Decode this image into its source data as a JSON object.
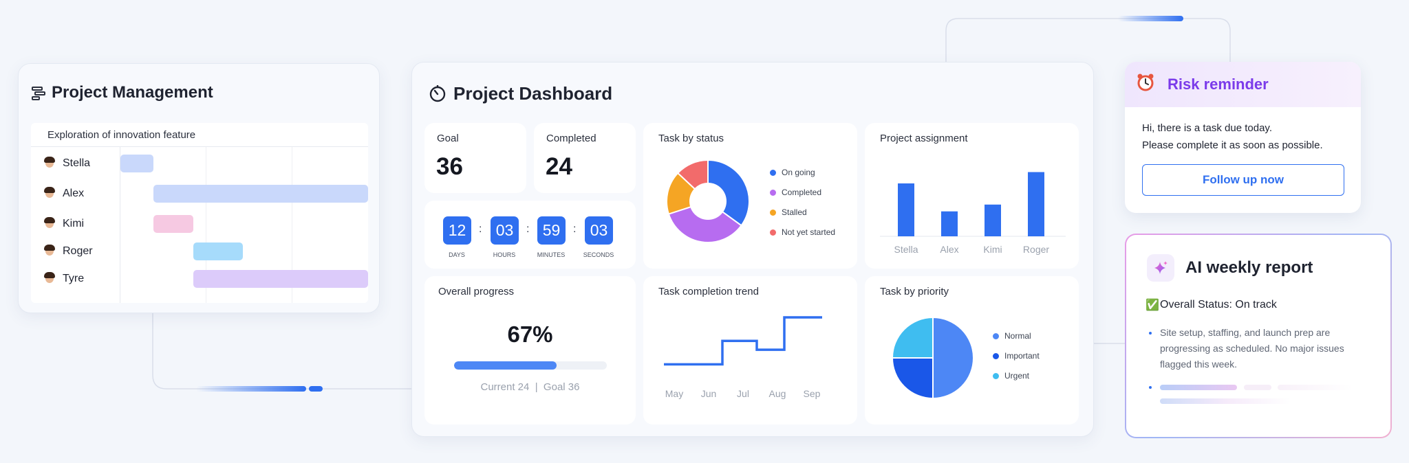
{
  "colors": {
    "primary": "#2f6ff0",
    "purple": "#7b3bea",
    "bg": "#f3f6fb"
  },
  "project_management": {
    "title": "Project Management",
    "icon": "gantt-icon",
    "task_title": "Exploration of innovation feature",
    "people": [
      {
        "name": "Stella",
        "color": "#c9d8fb"
      },
      {
        "name": "Alex",
        "color": "#c9d8fb"
      },
      {
        "name": "Kimi",
        "color": "#f6c9e2"
      },
      {
        "name": "Roger",
        "color": "#a6dbfb"
      },
      {
        "name": "Tyre",
        "color": "#dccbfa"
      }
    ]
  },
  "dashboard": {
    "title": "Project Dashboard",
    "icon": "timer-icon",
    "goal": {
      "label": "Goal",
      "value": "36"
    },
    "completed": {
      "label": "Completed",
      "value": "24"
    },
    "countdown": [
      {
        "value": "12",
        "unit": "DAYS"
      },
      {
        "value": "03",
        "unit": "HOURS"
      },
      {
        "value": "59",
        "unit": "MINUTES"
      },
      {
        "value": "03",
        "unit": "SECONDS"
      }
    ],
    "colon": ":",
    "task_by_status": {
      "title": "Task by status",
      "legend": [
        {
          "label": "On going",
          "color": "#2f6ff0"
        },
        {
          "label": "Completed",
          "color": "#b76cf0"
        },
        {
          "label": "Stalled",
          "color": "#f5a524"
        },
        {
          "label": "Not yet started",
          "color": "#f26b6b"
        }
      ]
    },
    "project_assignment": {
      "title": "Project assignment",
      "names": [
        "Stella",
        "Alex",
        "Kimi",
        "Roger"
      ]
    },
    "overall_progress": {
      "title": "Overall progress",
      "percent": "67%",
      "value": 0.67,
      "caption": "Current 24  |  Goal 36"
    },
    "task_completion_trend": {
      "title": "Task completion trend",
      "months": [
        "May",
        "Jun",
        "Jul",
        "Aug",
        "Sep"
      ]
    },
    "task_by_priority": {
      "title": "Task by priority",
      "legend": [
        {
          "label": "Normal",
          "color": "#4d87f5"
        },
        {
          "label": "Important",
          "color": "#1a57e8"
        },
        {
          "label": "Urgent",
          "color": "#3fbdf0"
        }
      ]
    }
  },
  "chart_data": [
    {
      "type": "pie",
      "title": "Task by status",
      "categories": [
        "On going",
        "Completed",
        "Stalled",
        "Not yet started"
      ],
      "values": [
        35,
        35,
        17,
        13
      ],
      "donut": true
    },
    {
      "type": "bar",
      "title": "Project assignment",
      "categories": [
        "Stella",
        "Alex",
        "Kimi",
        "Roger"
      ],
      "values": [
        70,
        33,
        42,
        85
      ],
      "ylim": [
        0,
        100
      ]
    },
    {
      "type": "line",
      "title": "Task completion trend",
      "step": true,
      "x": [
        "May",
        "Jun",
        "Jul",
        "Aug",
        "Sep"
      ],
      "values": [
        [
          0,
          10
        ],
        [
          1.7,
          10
        ],
        [
          1.7,
          55
        ],
        [
          2.7,
          55
        ],
        [
          2.7,
          38
        ],
        [
          3.5,
          38
        ],
        [
          3.5,
          100
        ],
        [
          4.6,
          100
        ]
      ],
      "ylim": [
        0,
        100
      ]
    },
    {
      "type": "pie",
      "title": "Task by priority",
      "categories": [
        "Normal",
        "Important",
        "Urgent"
      ],
      "values": [
        50,
        25,
        25
      ]
    }
  ],
  "risk": {
    "icon": "alarm-clock-icon",
    "title": "Risk reminder",
    "line1": "Hi, there is a task due today.",
    "line2": "Please complete it as soon as possible.",
    "button": "Follow up now"
  },
  "ai": {
    "icon": "sparkle-icon",
    "title": "AI weekly report",
    "check": "✅",
    "status": "Overall Status: On track",
    "bullet": "Site setup, staffing, and launch prep are progressing as scheduled. No major issues flagged this week."
  }
}
